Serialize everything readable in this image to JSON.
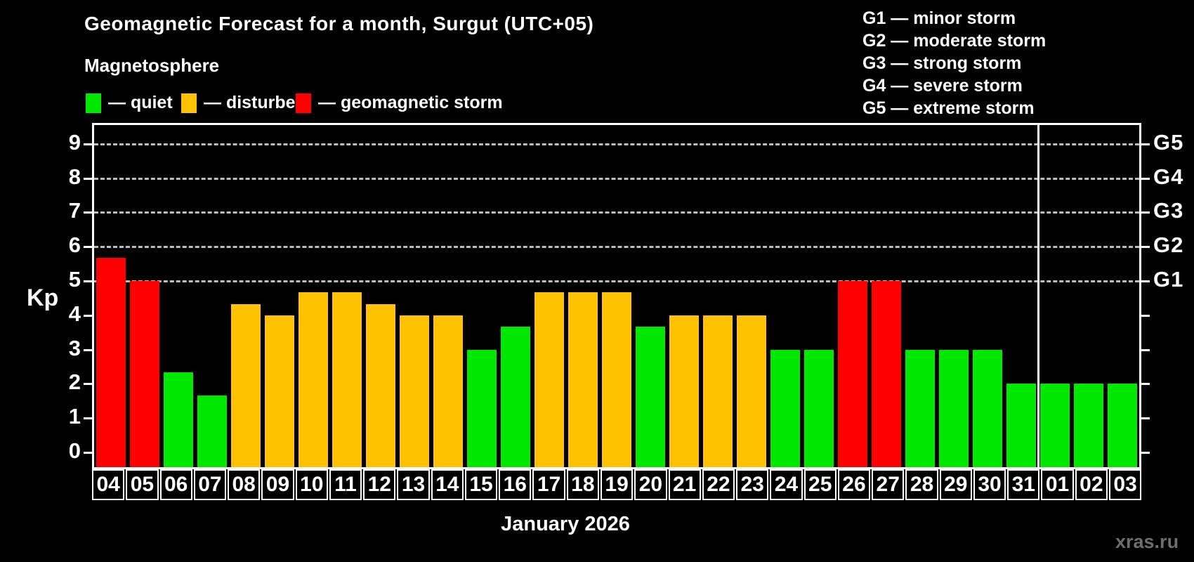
{
  "header": {
    "title": "Geomagnetic Forecast for a month, Surgut (UTC+05)",
    "subtitle": "Magnetosphere",
    "legend": [
      {
        "label": "— quiet",
        "status": "quiet"
      },
      {
        "label": "— disturbed",
        "status": "disturbed"
      },
      {
        "label": "— geomagnetic storm",
        "status": "storm"
      }
    ],
    "g_legend": [
      "G1 — minor storm",
      "G2 — moderate storm",
      "G3 — strong storm",
      "G4 — severe storm",
      "G5 — extreme storm"
    ]
  },
  "colors": {
    "quiet": "#00e800",
    "disturbed": "#ffc200",
    "storm": "#ff0000",
    "background": "#000000",
    "axis": "#ffffff",
    "grid": "#bdbdbd",
    "watermark": "#6e6e6e"
  },
  "chart_data": {
    "type": "bar",
    "title": "Geomagnetic Forecast for a month, Surgut (UTC+05)",
    "xlabel": "January 2026",
    "ylabel": "Kp",
    "ylim": [
      0,
      9
    ],
    "y_ticks": [
      0,
      1,
      2,
      3,
      4,
      5,
      6,
      7,
      8,
      9
    ],
    "grid": "dashed horizontal lines at Kp 5 through 9 only",
    "legend_position": "top",
    "right_axis": [
      {
        "kp": 5,
        "label": "G1"
      },
      {
        "kp": 6,
        "label": "G2"
      },
      {
        "kp": 7,
        "label": "G3"
      },
      {
        "kp": 8,
        "label": "G4"
      },
      {
        "kp": 9,
        "label": "G5"
      }
    ],
    "month_divider_after_index": 27,
    "bars": [
      {
        "day": "04",
        "kp": 5.67,
        "status": "storm"
      },
      {
        "day": "05",
        "kp": 5.0,
        "status": "storm"
      },
      {
        "day": "06",
        "kp": 2.33,
        "status": "quiet"
      },
      {
        "day": "07",
        "kp": 1.67,
        "status": "quiet"
      },
      {
        "day": "08",
        "kp": 4.33,
        "status": "disturbed"
      },
      {
        "day": "09",
        "kp": 4.0,
        "status": "disturbed"
      },
      {
        "day": "10",
        "kp": 4.67,
        "status": "disturbed"
      },
      {
        "day": "11",
        "kp": 4.67,
        "status": "disturbed"
      },
      {
        "day": "12",
        "kp": 4.33,
        "status": "disturbed"
      },
      {
        "day": "13",
        "kp": 4.0,
        "status": "disturbed"
      },
      {
        "day": "14",
        "kp": 4.0,
        "status": "disturbed"
      },
      {
        "day": "15",
        "kp": 3.0,
        "status": "quiet"
      },
      {
        "day": "16",
        "kp": 3.67,
        "status": "quiet"
      },
      {
        "day": "17",
        "kp": 4.67,
        "status": "disturbed"
      },
      {
        "day": "18",
        "kp": 4.67,
        "status": "disturbed"
      },
      {
        "day": "19",
        "kp": 4.67,
        "status": "disturbed"
      },
      {
        "day": "20",
        "kp": 3.67,
        "status": "quiet"
      },
      {
        "day": "21",
        "kp": 4.0,
        "status": "disturbed"
      },
      {
        "day": "22",
        "kp": 4.0,
        "status": "disturbed"
      },
      {
        "day": "23",
        "kp": 4.0,
        "status": "disturbed"
      },
      {
        "day": "24",
        "kp": 3.0,
        "status": "quiet"
      },
      {
        "day": "25",
        "kp": 3.0,
        "status": "quiet"
      },
      {
        "day": "26",
        "kp": 5.0,
        "status": "storm"
      },
      {
        "day": "27",
        "kp": 5.0,
        "status": "storm"
      },
      {
        "day": "28",
        "kp": 3.0,
        "status": "quiet"
      },
      {
        "day": "29",
        "kp": 3.0,
        "status": "quiet"
      },
      {
        "day": "30",
        "kp": 3.0,
        "status": "quiet"
      },
      {
        "day": "31",
        "kp": 2.0,
        "status": "quiet"
      },
      {
        "day": "01",
        "kp": 2.0,
        "status": "quiet"
      },
      {
        "day": "02",
        "kp": 2.0,
        "status": "quiet"
      },
      {
        "day": "03",
        "kp": 2.0,
        "status": "quiet"
      }
    ]
  },
  "footer": {
    "watermark": "xras.ru"
  }
}
